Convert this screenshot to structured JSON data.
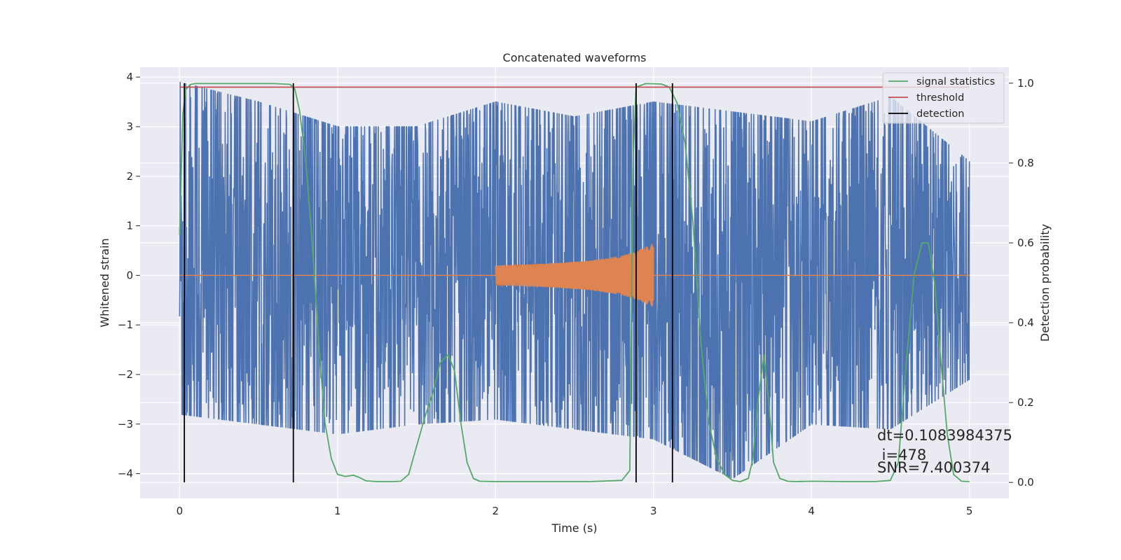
{
  "chart_data": {
    "type": "line",
    "title": "Concatenated waveforms",
    "xlabel": "Time (s)",
    "ylabel": "Whitened strain",
    "y2label": "Detection probability",
    "xlim": [
      -0.25,
      5.25
    ],
    "ylim": [
      -4.5,
      4.2
    ],
    "y2lim": [
      -0.04,
      1.04
    ],
    "xticks": [
      0,
      1,
      2,
      3,
      4,
      5
    ],
    "xtick_labels": [
      "0",
      "1",
      "2",
      "3",
      "4",
      "5"
    ],
    "yticks": [
      -4,
      -3,
      -2,
      -1,
      0,
      1,
      2,
      3,
      4
    ],
    "ytick_labels": [
      "−4",
      "−3",
      "−2",
      "−1",
      "0",
      "1",
      "2",
      "3",
      "4"
    ],
    "y2ticks": [
      0.0,
      0.2,
      0.4,
      0.6,
      0.8,
      1.0
    ],
    "y2tick_labels": [
      "0.0",
      "0.2",
      "0.4",
      "0.6",
      "0.8",
      "1.0"
    ],
    "grid": true,
    "legend_position": "top-right",
    "legend": [
      {
        "label": "signal statistics",
        "color": "#55a868"
      },
      {
        "label": "threshold",
        "color": "#c44e52"
      },
      {
        "label": "detection",
        "color": "#000000"
      }
    ],
    "series": [
      {
        "role": "whitened strain",
        "color": "#4c72b0",
        "axis": "left",
        "x_range": [
          0,
          5
        ],
        "envelope_x": [
          0,
          0.5,
          1,
          1.5,
          2,
          2.5,
          3,
          3.5,
          4,
          4.5,
          5
        ],
        "envelope_max": [
          3.9,
          3.5,
          3.0,
          3.0,
          3.5,
          3.2,
          3.5,
          3.3,
          3.1,
          3.6,
          2.3
        ],
        "envelope_min": [
          -2.8,
          -3.0,
          -3.2,
          -3.0,
          -2.9,
          -3.1,
          -3.3,
          -4.1,
          -3.0,
          -3.1,
          -2.1
        ]
      },
      {
        "role": "injected chirp",
        "color": "#dd8452",
        "axis": "left",
        "x": [
          0,
          2.0,
          2.2,
          2.4,
          2.6,
          2.8,
          2.9,
          3.0,
          5
        ],
        "amplitude": [
          0,
          0.2,
          0.22,
          0.25,
          0.3,
          0.4,
          0.5,
          0.65,
          0
        ]
      },
      {
        "name": "signal statistics",
        "color": "#55a868",
        "axis": "right",
        "x": [
          0,
          0.02,
          0.04,
          0.07,
          0.1,
          0.2,
          0.4,
          0.6,
          0.7,
          0.73,
          0.76,
          0.8,
          0.84,
          0.88,
          0.92,
          0.96,
          1.0,
          1.05,
          1.1,
          1.14,
          1.18,
          1.25,
          1.3,
          1.35,
          1.4,
          1.45,
          1.5,
          1.55,
          1.6,
          1.65,
          1.7,
          1.74,
          1.78,
          1.82,
          1.86,
          1.9,
          2.0,
          2.2,
          2.4,
          2.6,
          2.8,
          2.85,
          2.87,
          2.89,
          2.95,
          3.05,
          3.1,
          3.15,
          3.2,
          3.25,
          3.3,
          3.35,
          3.4,
          3.45,
          3.5,
          3.55,
          3.6,
          3.63,
          3.66,
          3.7,
          3.73,
          3.76,
          3.8,
          3.85,
          3.9,
          4.0,
          4.2,
          4.4,
          4.5,
          4.55,
          4.6,
          4.65,
          4.7,
          4.74,
          4.78,
          4.82,
          4.86,
          4.9,
          4.95,
          5.0
        ],
        "values": [
          0.62,
          0.92,
          0.985,
          0.997,
          0.999,
          0.999,
          0.999,
          0.999,
          0.997,
          0.985,
          0.93,
          0.8,
          0.6,
          0.35,
          0.15,
          0.06,
          0.02,
          0.015,
          0.018,
          0.012,
          0.004,
          0.002,
          0.002,
          0.002,
          0.003,
          0.02,
          0.09,
          0.16,
          0.22,
          0.3,
          0.32,
          0.28,
          0.15,
          0.05,
          0.01,
          0.003,
          0.002,
          0.002,
          0.002,
          0.002,
          0.005,
          0.03,
          0.8,
          0.99,
          0.999,
          0.998,
          0.99,
          0.95,
          0.85,
          0.65,
          0.35,
          0.15,
          0.06,
          0.02,
          0.005,
          0.002,
          0.01,
          0.06,
          0.2,
          0.32,
          0.2,
          0.05,
          0.01,
          0.003,
          0.002,
          0.003,
          0.002,
          0.002,
          0.005,
          0.05,
          0.3,
          0.52,
          0.6,
          0.6,
          0.5,
          0.3,
          0.12,
          0.02,
          0.003,
          0.002
        ]
      },
      {
        "name": "threshold",
        "color": "#c44e52",
        "axis": "right",
        "x": [
          0,
          5
        ],
        "values": [
          0.99,
          0.99
        ]
      },
      {
        "name": "detection",
        "color": "#000000",
        "axis": "right",
        "x": [
          0.03,
          0.72,
          2.89,
          3.12
        ],
        "values": [
          1.0,
          1.0,
          1.0,
          1.0
        ]
      }
    ],
    "annotations": [
      "dt=0.1083984375",
      " i=478",
      "SNR=7.400374"
    ]
  }
}
